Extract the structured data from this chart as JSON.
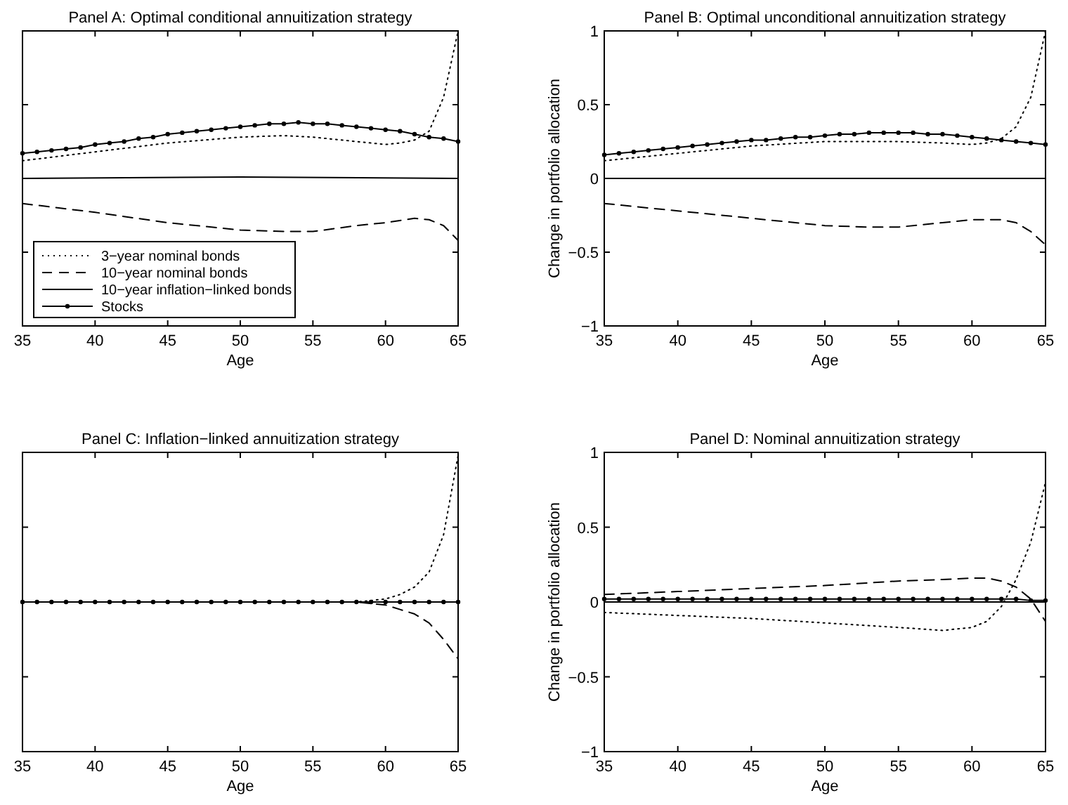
{
  "chart_data": [
    {
      "type": "line",
      "title": "Panel A: Optimal conditional annuitization strategy",
      "xlabel": "Age",
      "xlim": [
        35,
        65
      ],
      "xticks": [
        35,
        40,
        45,
        50,
        55,
        60,
        65
      ],
      "ylim": [
        -1,
        1
      ],
      "yticks": [
        -1,
        -0.5,
        0,
        0.5,
        1
      ],
      "tick_labels": "x",
      "legend": "bottom left",
      "grid": false,
      "series": [
        {
          "name": "3−year nominal bonds",
          "color": "#000000",
          "line_style": "dotted",
          "marker": "none",
          "x": [
            35,
            40,
            45,
            50,
            53,
            55,
            58,
            60,
            61,
            62,
            63,
            64,
            65
          ],
          "values": [
            0.12,
            0.18,
            0.24,
            0.28,
            0.29,
            0.28,
            0.25,
            0.23,
            0.24,
            0.26,
            0.32,
            0.55,
            1.0
          ]
        },
        {
          "name": "10−year nominal bonds",
          "color": "#000000",
          "line_style": "dashed",
          "marker": "none",
          "x": [
            35,
            40,
            45,
            50,
            53,
            55,
            58,
            60,
            62,
            63,
            64,
            65
          ],
          "values": [
            -0.17,
            -0.23,
            -0.3,
            -0.35,
            -0.36,
            -0.36,
            -0.32,
            -0.3,
            -0.27,
            -0.28,
            -0.32,
            -0.42
          ]
        },
        {
          "name": "10−year inflation−linked bonds",
          "color": "#000000",
          "line_style": "solid",
          "marker": "none",
          "x": [
            35,
            50,
            65
          ],
          "values": [
            0,
            0.01,
            0
          ]
        },
        {
          "name": "Stocks",
          "color": "#000000",
          "line_style": "solid",
          "marker": "circle",
          "x": [
            35,
            36,
            37,
            38,
            39,
            40,
            41,
            42,
            43,
            44,
            45,
            46,
            47,
            48,
            49,
            50,
            51,
            52,
            53,
            54,
            55,
            56,
            57,
            58,
            59,
            60,
            61,
            62,
            63,
            64,
            65
          ],
          "values": [
            0.17,
            0.18,
            0.19,
            0.2,
            0.21,
            0.23,
            0.24,
            0.25,
            0.27,
            0.28,
            0.3,
            0.31,
            0.32,
            0.33,
            0.34,
            0.35,
            0.36,
            0.37,
            0.37,
            0.38,
            0.37,
            0.37,
            0.36,
            0.35,
            0.34,
            0.33,
            0.32,
            0.3,
            0.28,
            0.27,
            0.25
          ]
        }
      ]
    },
    {
      "type": "line",
      "title": "Panel B: Optimal unconditional annuitization strategy",
      "xlabel": "Age",
      "ylabel": "Change in portfolio allocation",
      "xlim": [
        35,
        65
      ],
      "xticks": [
        35,
        40,
        45,
        50,
        55,
        60,
        65
      ],
      "ylim": [
        -1,
        1
      ],
      "yticks": [
        -1,
        -0.5,
        0,
        0.5,
        1
      ],
      "grid": false,
      "series": [
        {
          "color": "#000000",
          "line_style": "dotted",
          "marker": "none",
          "x": [
            35,
            40,
            45,
            50,
            55,
            58,
            60,
            61,
            62,
            63,
            64,
            65
          ],
          "values": [
            0.12,
            0.17,
            0.22,
            0.25,
            0.25,
            0.24,
            0.23,
            0.24,
            0.27,
            0.35,
            0.55,
            1.0
          ]
        },
        {
          "color": "#000000",
          "line_style": "dashed",
          "marker": "none",
          "x": [
            35,
            40,
            45,
            50,
            53,
            55,
            58,
            60,
            62,
            63,
            64,
            65
          ],
          "values": [
            -0.17,
            -0.22,
            -0.27,
            -0.32,
            -0.33,
            -0.33,
            -0.3,
            -0.28,
            -0.28,
            -0.3,
            -0.36,
            -0.45
          ]
        },
        {
          "color": "#000000",
          "line_style": "solid",
          "marker": "none",
          "x": [
            35,
            65
          ],
          "values": [
            0,
            0
          ]
        },
        {
          "color": "#000000",
          "line_style": "solid",
          "marker": "circle",
          "x": [
            35,
            36,
            37,
            38,
            39,
            40,
            41,
            42,
            43,
            44,
            45,
            46,
            47,
            48,
            49,
            50,
            51,
            52,
            53,
            54,
            55,
            56,
            57,
            58,
            59,
            60,
            61,
            62,
            63,
            64,
            65
          ],
          "values": [
            0.16,
            0.17,
            0.18,
            0.19,
            0.2,
            0.21,
            0.22,
            0.23,
            0.24,
            0.25,
            0.26,
            0.26,
            0.27,
            0.28,
            0.28,
            0.29,
            0.3,
            0.3,
            0.31,
            0.31,
            0.31,
            0.31,
            0.3,
            0.3,
            0.29,
            0.28,
            0.27,
            0.26,
            0.25,
            0.24,
            0.23
          ]
        }
      ]
    },
    {
      "type": "line",
      "title": "Panel C: Inflation−linked annuitization strategy",
      "xlabel": "Age",
      "xlim": [
        35,
        65
      ],
      "xticks": [
        35,
        40,
        45,
        50,
        55,
        60,
        65
      ],
      "ylim": [
        -1,
        1
      ],
      "yticks": [
        -1,
        -0.5,
        0,
        0.5,
        1
      ],
      "tick_labels": "x",
      "grid": false,
      "series": [
        {
          "color": "#000000",
          "line_style": "dotted",
          "marker": "none",
          "x": [
            35,
            58,
            59,
            60,
            61,
            62,
            63,
            64,
            65
          ],
          "values": [
            0,
            0,
            0.01,
            0.02,
            0.05,
            0.1,
            0.2,
            0.45,
            0.98
          ]
        },
        {
          "color": "#000000",
          "line_style": "dashed",
          "marker": "none",
          "x": [
            35,
            58,
            59,
            60,
            61,
            62,
            63,
            64,
            65
          ],
          "values": [
            0,
            0,
            -0.01,
            -0.02,
            -0.05,
            -0.08,
            -0.14,
            -0.25,
            -0.38
          ]
        },
        {
          "color": "#000000",
          "line_style": "solid",
          "marker": "circle",
          "x": [
            35,
            36,
            37,
            38,
            39,
            40,
            41,
            42,
            43,
            44,
            45,
            46,
            47,
            48,
            49,
            50,
            51,
            52,
            53,
            54,
            55,
            56,
            57,
            58,
            59,
            60,
            61,
            62,
            63,
            64,
            65
          ],
          "values": [
            0,
            0,
            0,
            0,
            0,
            0,
            0,
            0,
            0,
            0,
            0,
            0,
            0,
            0,
            0,
            0,
            0,
            0,
            0,
            0,
            0,
            0,
            0,
            0,
            0,
            0,
            0,
            0,
            0,
            0,
            0
          ]
        }
      ]
    },
    {
      "type": "line",
      "title": "Panel D: Nominal annuitization strategy",
      "xlabel": "Age",
      "ylabel": "Change in portfolio allocation",
      "xlim": [
        35,
        65
      ],
      "xticks": [
        35,
        40,
        45,
        50,
        55,
        60,
        65
      ],
      "ylim": [
        -1,
        1
      ],
      "yticks": [
        -1,
        -0.5,
        0,
        0.5,
        1
      ],
      "grid": false,
      "series": [
        {
          "color": "#000000",
          "line_style": "dotted",
          "marker": "none",
          "x": [
            35,
            40,
            45,
            50,
            55,
            58,
            60,
            61,
            62,
            63,
            64,
            65
          ],
          "values": [
            -0.07,
            -0.09,
            -0.11,
            -0.14,
            -0.17,
            -0.19,
            -0.17,
            -0.13,
            -0.03,
            0.15,
            0.4,
            0.8
          ]
        },
        {
          "color": "#000000",
          "line_style": "dashed",
          "marker": "none",
          "x": [
            35,
            40,
            45,
            50,
            55,
            58,
            60,
            61,
            62,
            63,
            64,
            65
          ],
          "values": [
            0.05,
            0.07,
            0.09,
            0.11,
            0.14,
            0.15,
            0.16,
            0.16,
            0.14,
            0.1,
            0.02,
            -0.13
          ]
        },
        {
          "color": "#000000",
          "line_style": "solid",
          "marker": "none",
          "x": [
            35,
            65
          ],
          "values": [
            0,
            0
          ]
        },
        {
          "color": "#000000",
          "line_style": "solid",
          "marker": "circle",
          "x": [
            35,
            36,
            37,
            38,
            39,
            40,
            41,
            42,
            43,
            44,
            45,
            46,
            47,
            48,
            49,
            50,
            51,
            52,
            53,
            54,
            55,
            56,
            57,
            58,
            59,
            60,
            61,
            62,
            63,
            64,
            65
          ],
          "values": [
            0.02,
            0.02,
            0.02,
            0.02,
            0.02,
            0.02,
            0.02,
            0.02,
            0.02,
            0.02,
            0.02,
            0.02,
            0.02,
            0.02,
            0.02,
            0.02,
            0.02,
            0.02,
            0.02,
            0.02,
            0.02,
            0.02,
            0.02,
            0.02,
            0.02,
            0.02,
            0.02,
            0.02,
            0.02,
            0.01,
            0.01
          ]
        }
      ]
    }
  ]
}
